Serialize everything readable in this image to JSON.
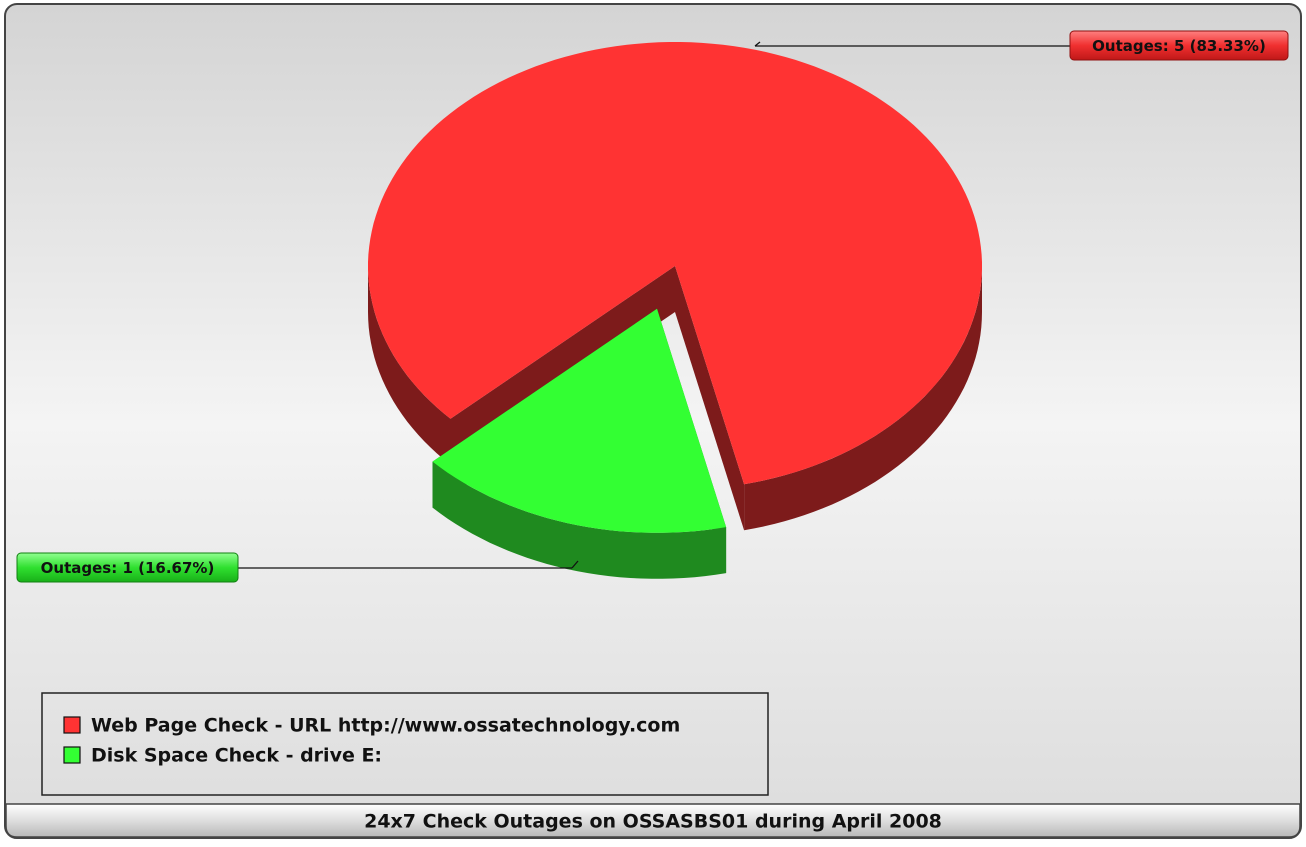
{
  "chart_data": {
    "type": "pie3d",
    "title": "24x7 Check Outages on OSSASBS01 during April 2008",
    "categories": [
      "Web Page Check - URL http://www.ossatechnology.com",
      "Disk Space Check - drive E:"
    ],
    "values": [
      5,
      1
    ],
    "value_labels": [
      "Outages: 5 (83.33%)",
      "Outages: 1 (16.67%)"
    ],
    "colors": [
      "#ff3333",
      "#33ff33"
    ],
    "side_colors": [
      "#7d1b1b",
      "#1f8a1f"
    ],
    "legend": "bottom-left"
  }
}
